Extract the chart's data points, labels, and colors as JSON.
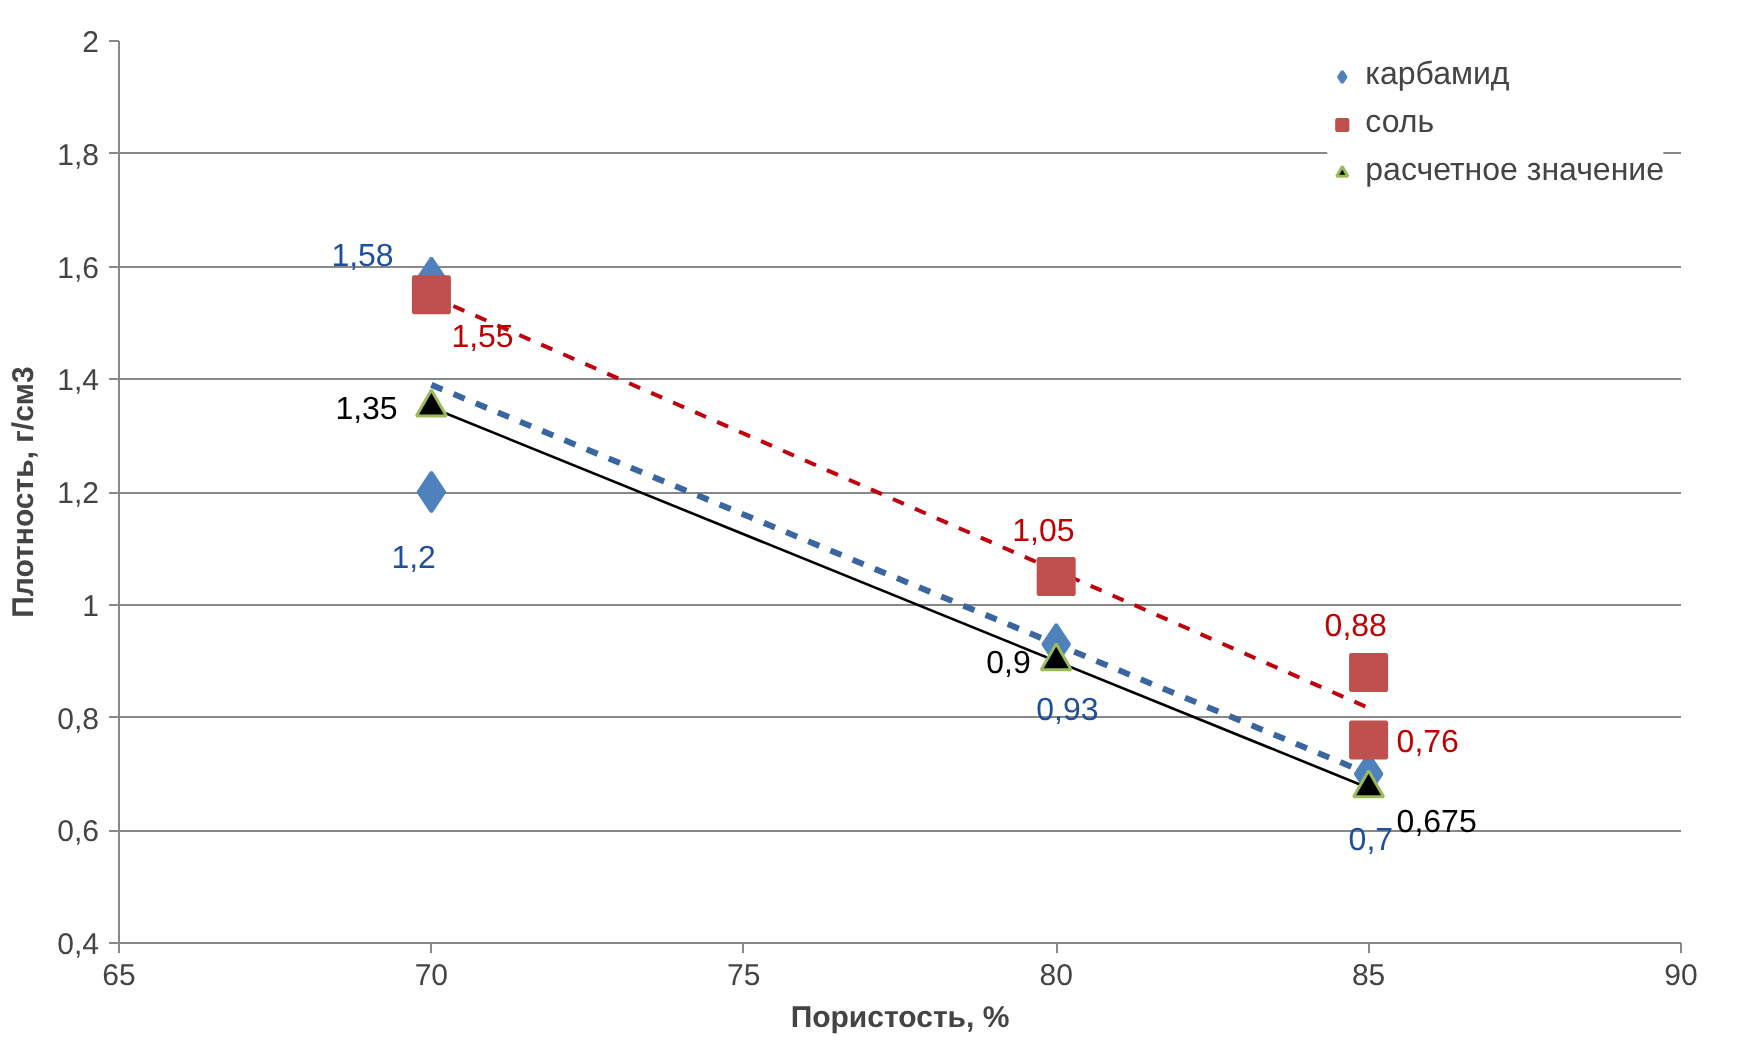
{
  "chart_data": {
    "type": "scatter",
    "xlabel": "Пористость, %",
    "ylabel": "Плотность, г/см3",
    "xlim": [
      65,
      90
    ],
    "xticks": [
      65,
      70,
      75,
      80,
      85,
      90
    ],
    "ylim": [
      0.4,
      2
    ],
    "yticks": [
      {
        "value": 0.4,
        "label": "0,4"
      },
      {
        "value": 0.6,
        "label": "0,6"
      },
      {
        "value": 0.8,
        "label": "0,8"
      },
      1,
      {
        "value": 1.2,
        "label": "1,2"
      },
      {
        "value": 1.4,
        "label": "1,4"
      },
      {
        "value": 1.6,
        "label": "1,6"
      },
      {
        "value": 1.8,
        "label": "1,8"
      },
      2
    ],
    "grid": "y",
    "legend": "top right",
    "series": [
      {
        "name": "карбамид",
        "marker": "diamond",
        "color": "#4f81bd",
        "x": [
          70,
          70,
          80,
          85
        ],
        "values": [
          1.58,
          1.2,
          0.93,
          0.7
        ],
        "value_labels": [
          "1,58",
          "1,2",
          "0,93",
          "0,7"
        ]
      },
      {
        "name": "соль",
        "marker": "square",
        "color": "#c0504d",
        "x": [
          70,
          80,
          85,
          85
        ],
        "values": [
          1.55,
          1.05,
          0.88,
          0.76
        ],
        "value_labels": [
          "1,55",
          "1,05",
          "0,88",
          "0,76"
        ]
      },
      {
        "name": "расчетное значение",
        "marker": "triangle",
        "color": "#000000",
        "x": [
          70,
          80,
          85
        ],
        "values": [
          1.35,
          0.9,
          0.675
        ],
        "value_labels": [
          "1,35",
          "0,9",
          "0,675"
        ]
      },
      {
        "type": "line",
        "line_style": "dashed",
        "color": "#c0000d",
        "x": [
          70,
          85
        ],
        "values": [
          1.547,
          0.817
        ]
      },
      {
        "type": "line",
        "line_style": "dashed",
        "color": "#3a66a0",
        "x": [
          70,
          85
        ],
        "values": [
          1.39,
          0.7
        ]
      },
      {
        "type": "line",
        "line_style": "solid",
        "color": "#000000",
        "x": [
          70,
          85
        ],
        "values": [
          1.35,
          0.675
        ]
      }
    ]
  }
}
